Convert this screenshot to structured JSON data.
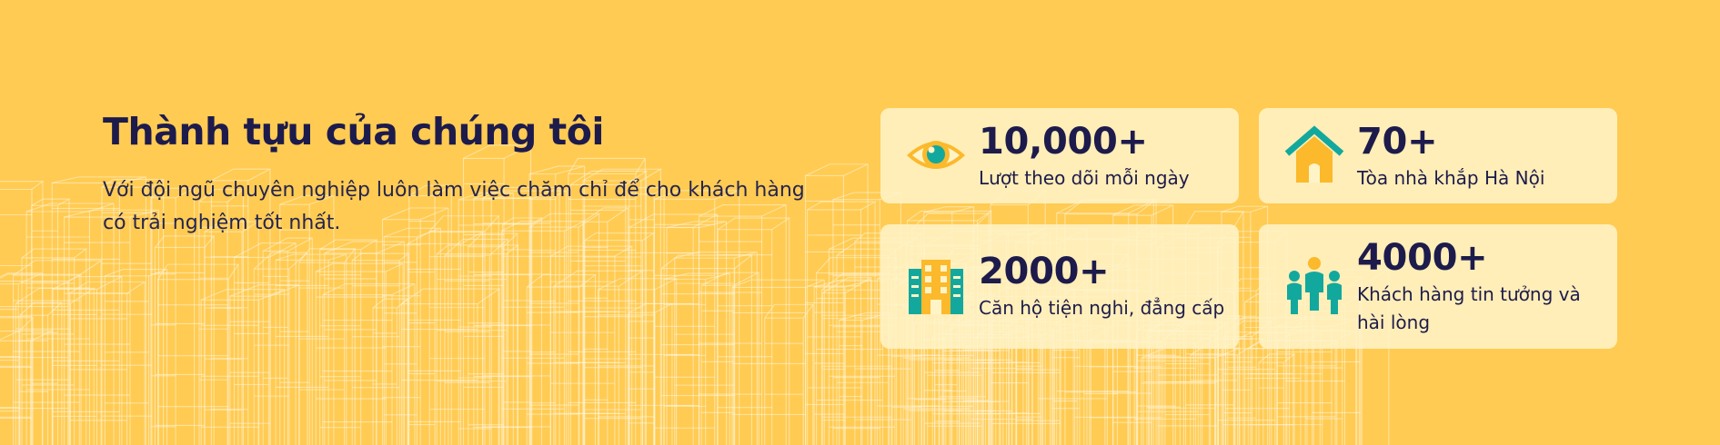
{
  "section": {
    "title": "Thành tựu của chúng tôi",
    "description": "Với đội ngũ chuyên nghiệp luôn làm việc chăm chỉ để cho khách hàng có trải nghiệm tốt nhất."
  },
  "stats": [
    {
      "value": "10,000+",
      "label": "Lượt theo dõi mỗi ngày",
      "icon": "eye-icon"
    },
    {
      "value": "70+",
      "label": "Tòa nhà khắp Hà Nội",
      "icon": "house-icon"
    },
    {
      "value": "2000+",
      "label": "Căn hộ tiện nghi, đẳng cấp",
      "icon": "building-icon"
    },
    {
      "value": "4000+",
      "label": "Khách hàng tin tưởng và hài lòng",
      "icon": "people-icon"
    }
  ],
  "colors": {
    "background": "#ffcb52",
    "card": "#fff3c8",
    "heading": "#1d1b4c",
    "icon_teal": "#13a89e",
    "icon_yellow": "#fbb92b"
  }
}
